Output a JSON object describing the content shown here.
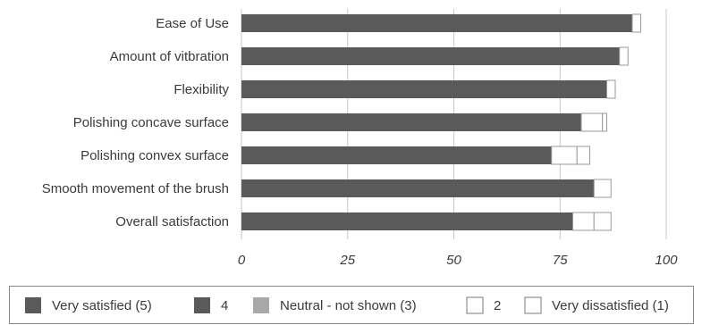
{
  "chart_data": {
    "type": "bar",
    "orientation": "horizontal",
    "stacked": true,
    "categories": [
      "Ease of Use",
      "Amount of vitbration",
      "Flexibility",
      "Polishing concave surface",
      "Polishing convex surface",
      "Smooth movement of the brush",
      "Overall satisfaction"
    ],
    "series": [
      {
        "name": "Very satisfied (5)",
        "color": "#5a5a5a",
        "values": [
          92,
          89,
          86,
          80,
          73,
          83,
          78
        ]
      },
      {
        "name": "4",
        "color": "#5a5a5a",
        "values": [
          0,
          0,
          0,
          0,
          0,
          0,
          0
        ]
      },
      {
        "name": "Neutral -  not shown (3)",
        "color": "#a8a8a8",
        "values": [
          0,
          0,
          0,
          0,
          0,
          0,
          0
        ]
      },
      {
        "name": "2",
        "color": "#ffffff",
        "values": [
          0,
          0,
          0,
          5,
          6,
          0,
          5
        ]
      },
      {
        "name": "Very dissatisfied (1)",
        "color": "#ffffff",
        "values": [
          2,
          2,
          2,
          1,
          3,
          4,
          4
        ]
      }
    ],
    "xlim": [
      0,
      100
    ],
    "xticks": [
      "0",
      "25",
      "50",
      "75",
      "100"
    ],
    "grid": true,
    "legend_position": "bottom"
  }
}
